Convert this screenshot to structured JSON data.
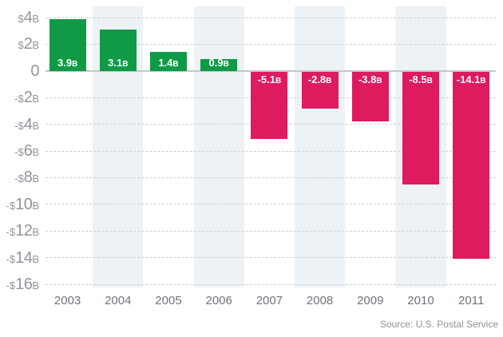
{
  "chart_data": {
    "type": "bar",
    "title": "",
    "categories": [
      "2003",
      "2004",
      "2005",
      "2006",
      "2007",
      "2008",
      "2009",
      "2010",
      "2011"
    ],
    "values": [
      3.9,
      3.1,
      1.4,
      0.9,
      -5.1,
      -2.8,
      -3.8,
      -8.5,
      -14.1
    ],
    "bar_labels": [
      "3.9B",
      "3.1B",
      "1.4B",
      "0.9B",
      "-5.1B",
      "-2.8B",
      "-3.8B",
      "-8.5B",
      "-14.1B"
    ],
    "xlabel": "",
    "ylabel": "",
    "ylim": [
      -16,
      4
    ],
    "gridline_step": 2,
    "grid": "dashed horizontal",
    "legend": "none",
    "y_ticks": [
      {
        "value": 4,
        "label": "$4B"
      },
      {
        "value": 2,
        "label": "$2B"
      },
      {
        "value": 0,
        "label": "0"
      },
      {
        "value": -2,
        "label": "-$2B"
      },
      {
        "value": -4,
        "label": "-$4B"
      },
      {
        "value": -6,
        "label": "-$6B"
      },
      {
        "value": -8,
        "label": "-$8B"
      },
      {
        "value": -10,
        "label": "-$10B"
      },
      {
        "value": -12,
        "label": "-$12B"
      },
      {
        "value": -14,
        "label": "-$14B"
      },
      {
        "value": -16,
        "label": "-$16B"
      }
    ],
    "colors": {
      "positive_bar": "#109a46",
      "negative_bar": "#de1b5f",
      "bar_label_text": "#ffffff",
      "column_stripe": "#edf2f6",
      "gridline": "#cbd0d4",
      "zero_line": "#c3c8cc",
      "y_tick_text": "#90969c",
      "x_tick_text": "#6e7379",
      "source_text": "#8d9297"
    },
    "striped_column_indexes": [
      1,
      3,
      5,
      7
    ],
    "source": "Source: U.S. Postal Service"
  }
}
